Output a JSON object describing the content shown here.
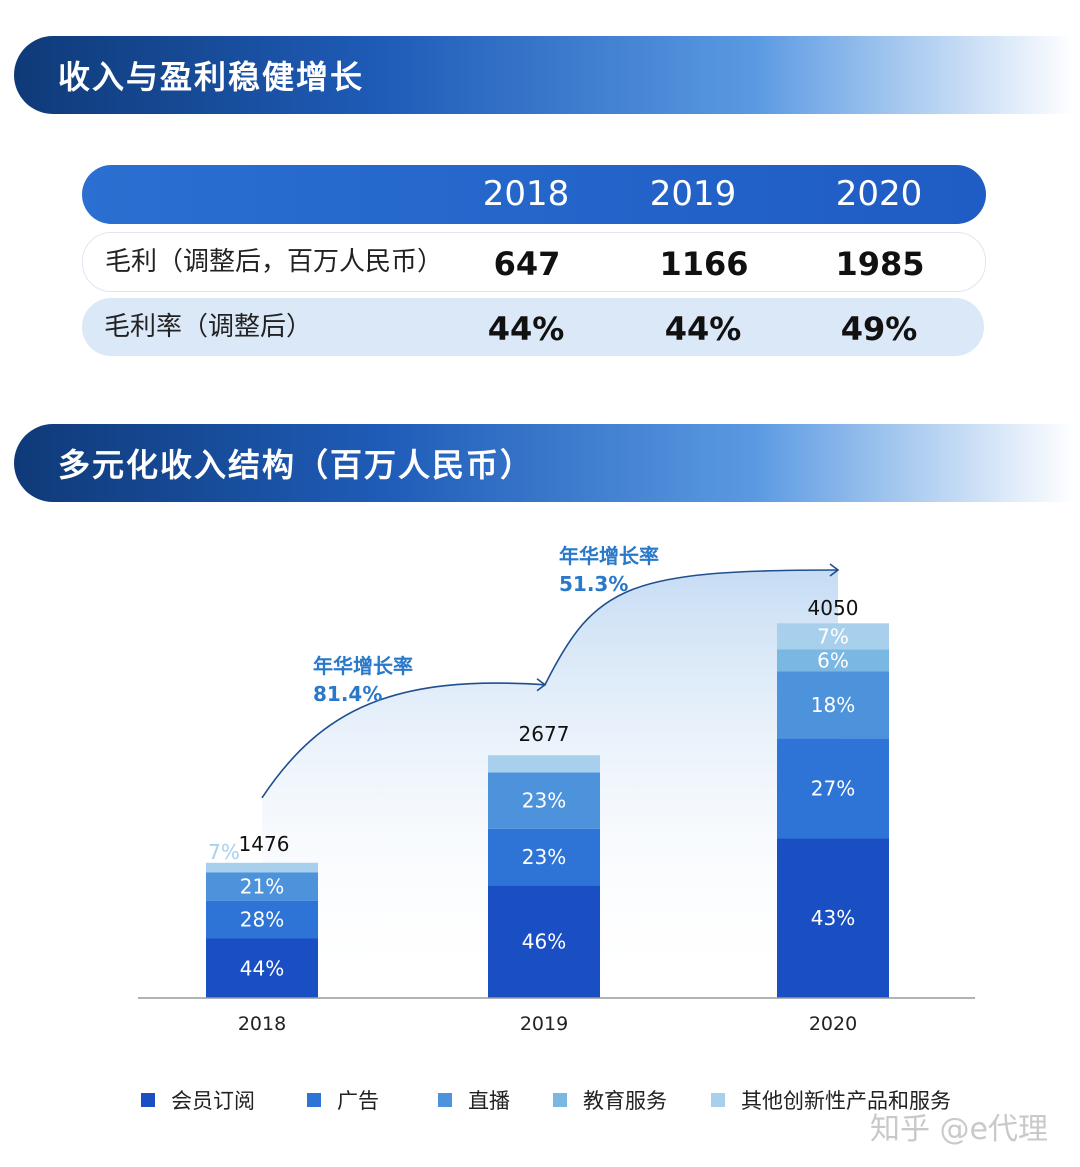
{
  "sections": {
    "title1": "收入与盈利稳健增长",
    "title2": "多元化收入结构（百万人民币）"
  },
  "table": {
    "years": [
      "2018",
      "2019",
      "2020"
    ],
    "rows": [
      {
        "label": "毛利（调整后，百万人民币）",
        "values": [
          "647",
          "1166",
          "1985"
        ]
      },
      {
        "label": "毛利率（调整后）",
        "values": [
          "44%",
          "44%",
          "49%"
        ]
      }
    ]
  },
  "chart_data": {
    "type": "bar",
    "stacked": true,
    "categories": [
      "2018",
      "2019",
      "2020"
    ],
    "totals": [
      1476,
      2677,
      4050
    ],
    "series": [
      {
        "name": "会员订阅",
        "color": "#1a4fc4",
        "values": [
          "44%",
          "46%",
          "43%"
        ]
      },
      {
        "name": "广告",
        "color": "#2e74d6",
        "values": [
          "28%",
          "23%",
          "27%"
        ]
      },
      {
        "name": "直播",
        "color": "#4d93dc",
        "values": [
          "21%",
          "23%",
          "18%"
        ]
      },
      {
        "name": "教育服务",
        "color": "#7ab7e2",
        "values": [
          "",
          "",
          "6%"
        ]
      },
      {
        "name": "其他创新性产品和服务",
        "color": "#a8d0ec",
        "values": [
          "7%",
          "7%",
          "7%"
        ]
      }
    ],
    "growth_annotations": [
      {
        "label": "年华增长率",
        "value": "81.4%"
      },
      {
        "label": "年华增长率",
        "value": "51.3%"
      }
    ]
  },
  "watermark": "知乎 @e代理"
}
